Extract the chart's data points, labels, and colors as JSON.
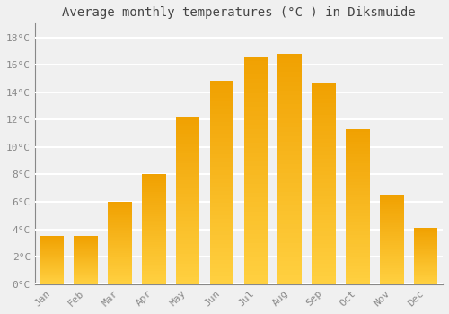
{
  "months": [
    "Jan",
    "Feb",
    "Mar",
    "Apr",
    "May",
    "Jun",
    "Jul",
    "Aug",
    "Sep",
    "Oct",
    "Nov",
    "Dec"
  ],
  "temperatures": [
    3.5,
    3.5,
    6.0,
    8.0,
    12.2,
    14.8,
    16.6,
    16.8,
    14.7,
    11.3,
    6.5,
    4.1
  ],
  "bar_color": "#FFA500",
  "bar_color_light": "#FFD000",
  "title": "Average monthly temperatures (°C ) in Diksmuide",
  "title_fontsize": 10,
  "ylabel_ticks": [
    "0°C",
    "2°C",
    "4°C",
    "6°C",
    "8°C",
    "10°C",
    "12°C",
    "14°C",
    "16°C",
    "18°C"
  ],
  "ytick_values": [
    0,
    2,
    4,
    6,
    8,
    10,
    12,
    14,
    16,
    18
  ],
  "ylim": [
    0,
    19
  ],
  "background_color": "#F0F0F0",
  "grid_color": "#FFFFFF",
  "tick_label_color": "#888888",
  "tick_label_fontsize": 8,
  "font_family": "monospace",
  "bar_width": 0.7,
  "bar_edge_color": "#E08000",
  "bar_gradient_top": "#F0A000",
  "bar_gradient_bottom": "#FFD040"
}
